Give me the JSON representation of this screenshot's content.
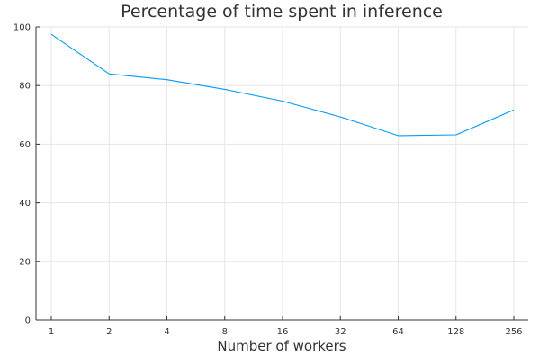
{
  "chart_data": {
    "type": "line",
    "title": "Percentage of time spent in inference",
    "xlabel": "Number of workers",
    "ylabel": "",
    "x_scale": "log2",
    "categories": [
      "1",
      "2",
      "4",
      "8",
      "16",
      "32",
      "64",
      "128",
      "256"
    ],
    "y_ticks": [
      0,
      20,
      40,
      60,
      80,
      100
    ],
    "ylim": [
      0,
      100
    ],
    "grid": true,
    "legend": "none",
    "series": [
      {
        "values": [
          97.5,
          84.0,
          82.0,
          78.7,
          74.7,
          69.3,
          62.9,
          63.2,
          71.7
        ],
        "color": "#009AFA"
      }
    ]
  }
}
